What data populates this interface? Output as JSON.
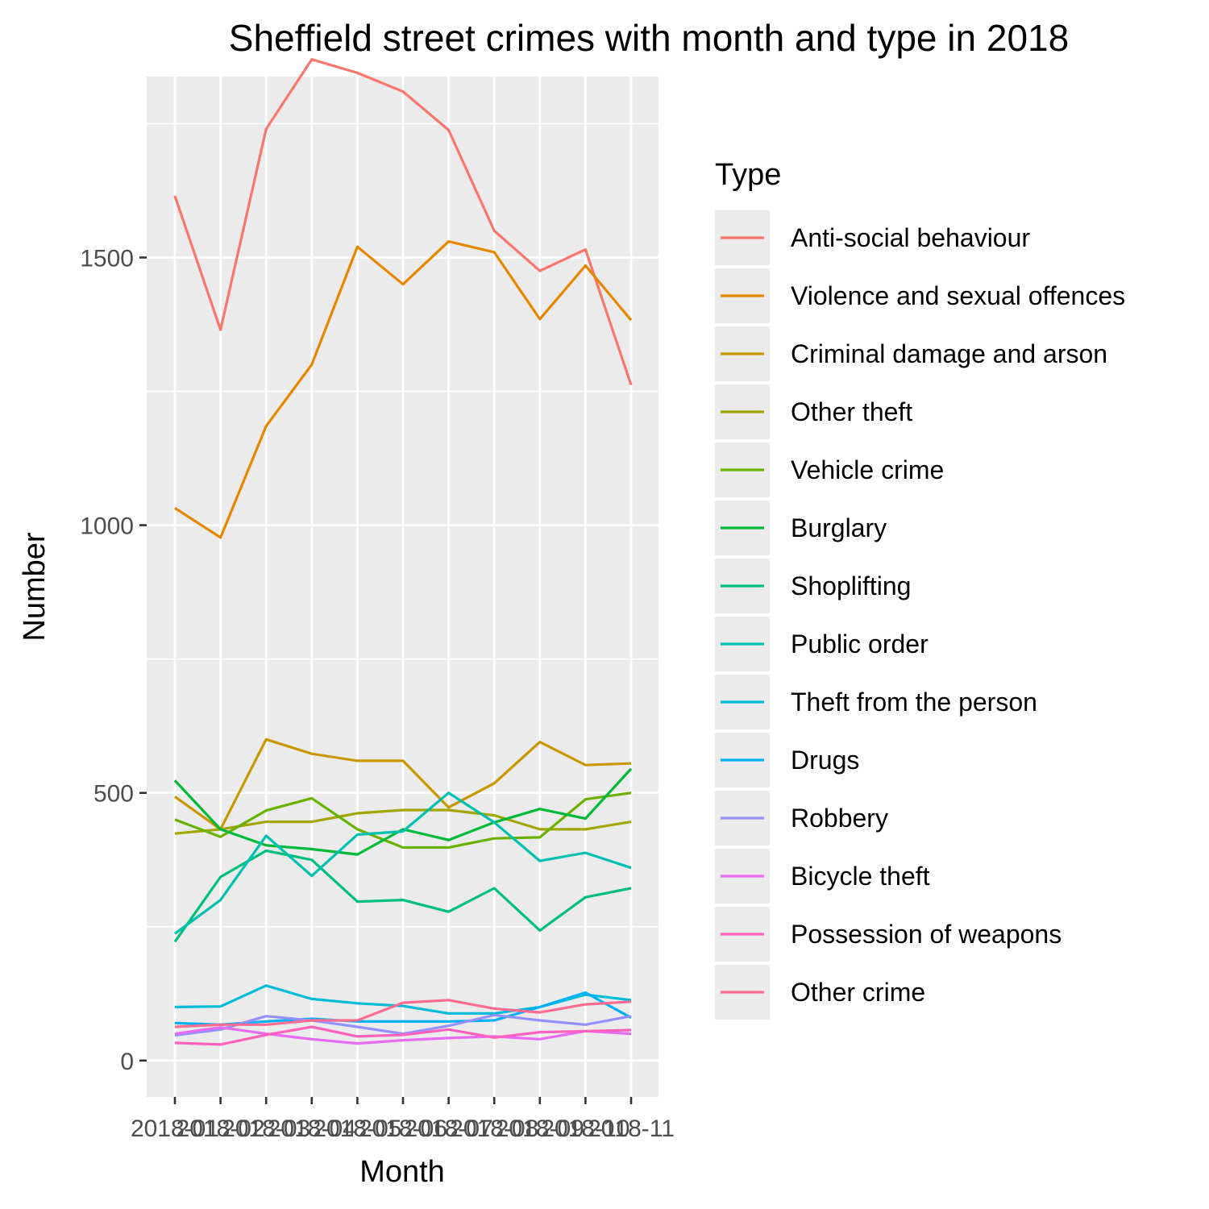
{
  "chart_data": {
    "type": "line",
    "title": "Sheffield street crimes with month and type in 2018",
    "xlabel": "Month",
    "ylabel": "Number",
    "x": [
      "2018-01",
      "2018-02",
      "2018-03",
      "2018-04",
      "2018-05",
      "2018-06",
      "2018-07",
      "2018-08",
      "2018-09",
      "2018-10",
      "2018-11"
    ],
    "x_tick_labels": [
      "2018-01",
      "2018-02",
      "2018-03",
      "2018-04",
      "2018-05",
      "2018-06",
      "2018-07",
      "2018-08",
      "2018-09",
      "2018-10",
      "2018-11"
    ],
    "y_ticks": [
      0,
      500,
      1000,
      1500
    ],
    "ylim": [
      -68,
      1838
    ],
    "grid": true,
    "legend": {
      "title": "Type",
      "position": "right"
    },
    "series": [
      {
        "name": "Anti-social behaviour",
        "color": "#F8766D",
        "values": [
          1615,
          1365,
          1740,
          1870,
          1845,
          1810,
          1738,
          1550,
          1475,
          1515,
          1262
        ]
      },
      {
        "name": "Violence and sexual offences",
        "color": "#E58700",
        "values": [
          1032,
          977,
          1185,
          1300,
          1520,
          1450,
          1530,
          1510,
          1385,
          1485,
          1383
        ]
      },
      {
        "name": "Criminal damage and arson",
        "color": "#C99800",
        "values": [
          493,
          432,
          600,
          573,
          560,
          560,
          473,
          518,
          595,
          552,
          555
        ]
      },
      {
        "name": "Other theft",
        "color": "#A3A500",
        "values": [
          424,
          432,
          446,
          446,
          462,
          468,
          468,
          458,
          432,
          432,
          446
        ]
      },
      {
        "name": "Vehicle crime",
        "color": "#6BB100",
        "values": [
          450,
          418,
          467,
          490,
          432,
          398,
          398,
          415,
          417,
          488,
          500
        ]
      },
      {
        "name": "Burglary",
        "color": "#00BA38",
        "values": [
          523,
          432,
          402,
          395,
          385,
          432,
          412,
          445,
          470,
          452,
          545
        ]
      },
      {
        "name": "Shoplifting",
        "color": "#00BF7D",
        "values": [
          222,
          343,
          392,
          375,
          297,
          300,
          278,
          322,
          243,
          305,
          322
        ]
      },
      {
        "name": "Public order",
        "color": "#00C0AF",
        "values": [
          237,
          300,
          420,
          345,
          422,
          428,
          500,
          445,
          373,
          388,
          360
        ]
      },
      {
        "name": "Theft from the person",
        "color": "#00BCD8",
        "values": [
          100,
          101,
          140,
          115,
          107,
          102,
          88,
          88,
          100,
          123,
          113
        ]
      },
      {
        "name": "Drugs",
        "color": "#00B0F6",
        "values": [
          70,
          67,
          73,
          78,
          73,
          73,
          73,
          75,
          100,
          127,
          80
        ]
      },
      {
        "name": "Robbery",
        "color": "#9590FF",
        "values": [
          47,
          58,
          83,
          75,
          63,
          50,
          65,
          85,
          75,
          67,
          83
        ]
      },
      {
        "name": "Bicycle theft",
        "color": "#E76BF3",
        "values": [
          50,
          62,
          50,
          40,
          32,
          38,
          42,
          45,
          40,
          55,
          50
        ]
      },
      {
        "name": "Possession of weapons",
        "color": "#FF62BC",
        "values": [
          33,
          30,
          48,
          63,
          45,
          48,
          58,
          43,
          53,
          55,
          57
        ]
      },
      {
        "name": "Other crime",
        "color": "#FF6C91",
        "values": [
          63,
          67,
          67,
          75,
          75,
          108,
          113,
          97,
          90,
          105,
          110
        ]
      }
    ]
  }
}
